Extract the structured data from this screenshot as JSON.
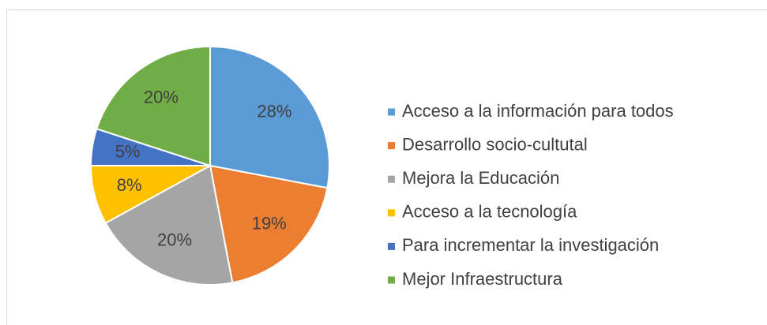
{
  "chart_data": {
    "type": "pie",
    "categories": [
      "Acceso a la información para todos",
      "Desarrollo socio-cultutal",
      "Mejora la Educación",
      "Acceso a la tecnología",
      "Para incrementar la investigación",
      "Mejor Infraestructura"
    ],
    "values": [
      28,
      19,
      20,
      8,
      5,
      20
    ],
    "value_labels": [
      "28%",
      "19%",
      "20%",
      "8%",
      "5%",
      "20%"
    ],
    "colors": [
      "#5b9bd5",
      "#ed7d31",
      "#a5a5a5",
      "#ffc000",
      "#4472c4",
      "#70ad47"
    ],
    "legend": "right"
  }
}
